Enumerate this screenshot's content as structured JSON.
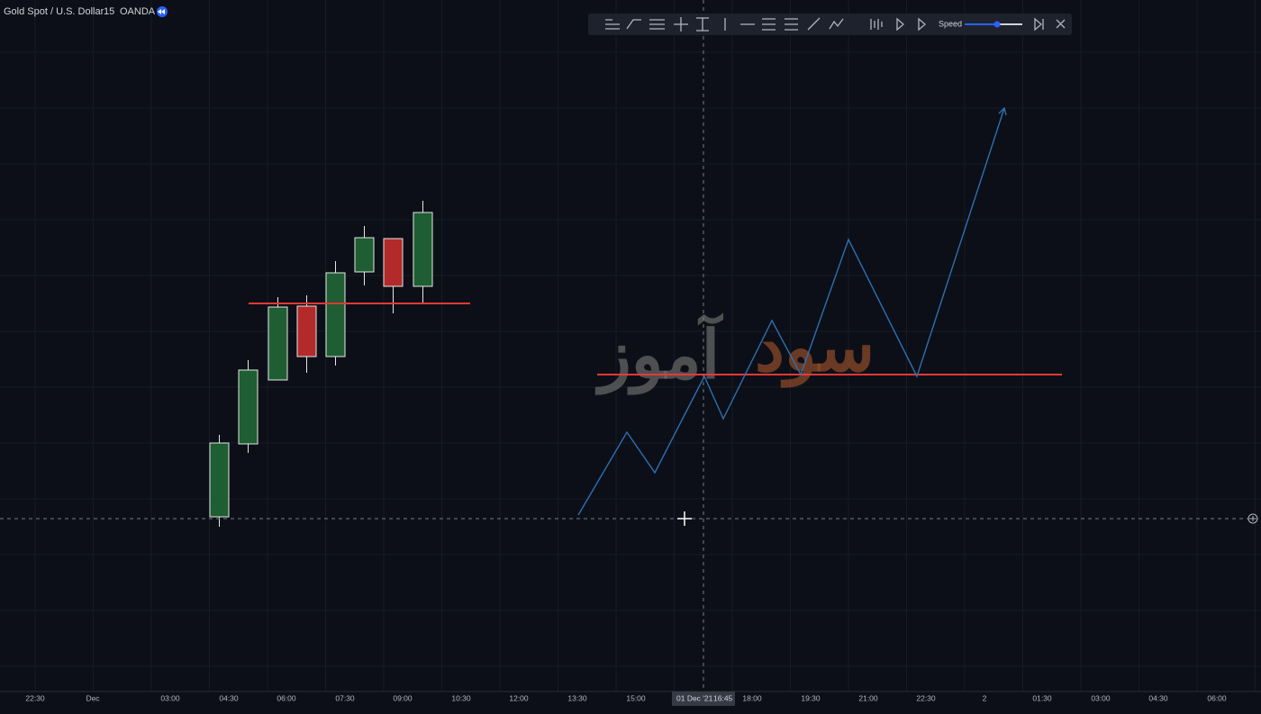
{
  "header": {
    "symbol": "Gold Spot / U.S. Dollar",
    "interval": "15",
    "source": "OANDA"
  },
  "toolbar": {
    "speed_label": "Speed"
  },
  "watermark": {
    "part1": "سود",
    "part2": "آموز"
  },
  "time_axis": {
    "labels": [
      "22:30",
      "Dec",
      "03:00",
      "04:30",
      "06:00",
      "07:30",
      "09:00",
      "10:30",
      "12:00",
      "13:30",
      "15:00",
      "18:00",
      "19:30",
      "21:00",
      "22:30",
      "2",
      "01:30",
      "03:00",
      "04:30",
      "06:00"
    ],
    "crosshair_date": "01 Dec '21",
    "crosshair_time": "16:45"
  }
}
